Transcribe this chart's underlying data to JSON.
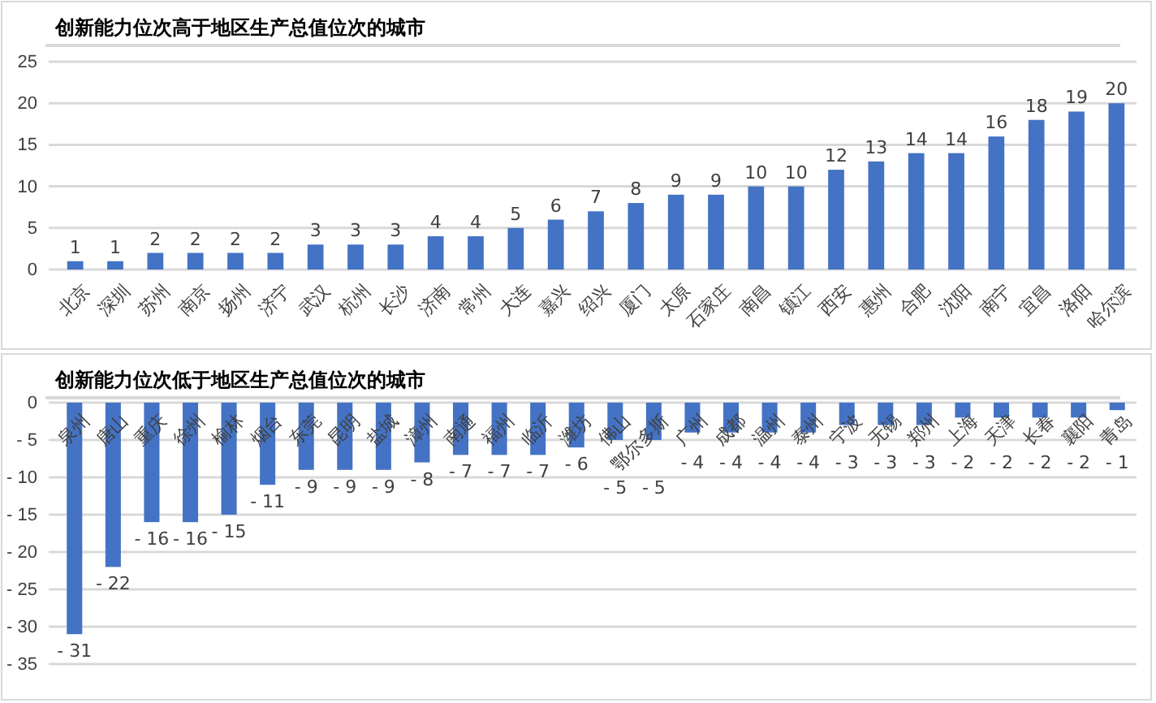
{
  "chart_data": [
    {
      "type": "bar",
      "title": "创新能力位次高于地区生产总值位次的城市",
      "categories": [
        "北京",
        "深圳",
        "苏州",
        "南京",
        "扬州",
        "济宁",
        "武汉",
        "杭州",
        "长沙",
        "济南",
        "常州",
        "大连",
        "嘉兴",
        "绍兴",
        "厦门",
        "太原",
        "石家庄",
        "南昌",
        "镇江",
        "西安",
        "惠州",
        "合肥",
        "沈阳",
        "南宁",
        "宜昌",
        "洛阳",
        "哈尔滨"
      ],
      "values": [
        1,
        1,
        2,
        2,
        2,
        2,
        3,
        3,
        3,
        4,
        4,
        5,
        6,
        7,
        8,
        9,
        9,
        10,
        10,
        12,
        13,
        14,
        14,
        16,
        18,
        19,
        20
      ],
      "color": "#4472c4",
      "ylim": [
        0,
        25
      ],
      "yticks": [
        0,
        5,
        10,
        15,
        20,
        25
      ],
      "grid": "y",
      "data_labels": true
    },
    {
      "type": "bar",
      "title": "创新能力位次低于地区生产总值位次的城市",
      "categories": [
        "泉州",
        "唐山",
        "重庆",
        "徐州",
        "榆林",
        "烟台",
        "东莞",
        "昆明",
        "盐城",
        "漳州",
        "南通",
        "福州",
        "临沂",
        "潍坊",
        "佛山",
        "鄂尔多斯",
        "广州",
        "成都",
        "温州",
        "泰州",
        "宁波",
        "无锡",
        "郑州",
        "上海",
        "天津",
        "长春",
        "襄阳",
        "青岛"
      ],
      "values": [
        -31,
        -22,
        -16,
        -16,
        -15,
        -11,
        -9,
        -9,
        -9,
        -8,
        -7,
        -7,
        -7,
        -6,
        -5,
        -5,
        -4,
        -4,
        -4,
        -4,
        -3,
        -3,
        -3,
        -2,
        -2,
        -2,
        -2,
        -1
      ],
      "value_labels": [
        "- 31",
        "- 22",
        "- 16",
        "- 16",
        "- 15",
        "- 11",
        "- 9",
        "- 9",
        "- 9",
        "- 8",
        "- 7",
        "- 7",
        "- 7",
        "- 6",
        "- 5",
        "- 5",
        "- 4",
        "- 4",
        "- 4",
        "- 4",
        "- 3",
        "- 3",
        "- 3",
        "- 2",
        "- 2",
        "- 2",
        "- 2",
        "- 1"
      ],
      "color": "#4472c4",
      "ylim": [
        -35,
        0
      ],
      "yticks": [
        {
          "value": 0,
          "label": "0"
        },
        {
          "value": -5,
          "label": "- 5"
        },
        {
          "value": -10,
          "label": "- 10"
        },
        {
          "value": -15,
          "label": "- 15"
        },
        {
          "value": -20,
          "label": "- 20"
        },
        {
          "value": -25,
          "label": "- 25"
        },
        {
          "value": -30,
          "label": "- 30"
        },
        {
          "value": -35,
          "label": "- 35"
        }
      ],
      "grid": "y"
    }
  ]
}
